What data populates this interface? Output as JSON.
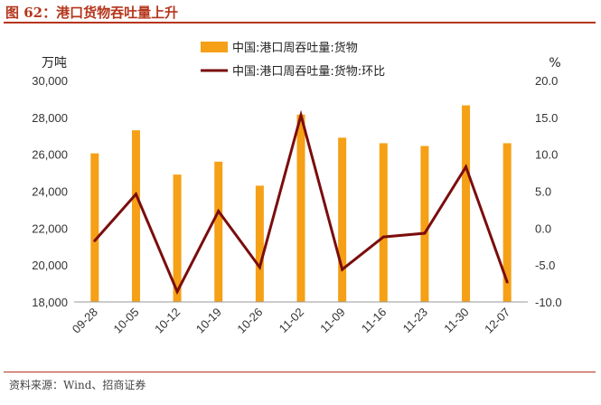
{
  "figure": {
    "title": "图 62：港口货物吞吐量上升",
    "source": "资料来源：Wind、招商证券"
  },
  "chart_data": {
    "type": "bar",
    "categories": [
      "09-28",
      "10-05",
      "10-12",
      "10-19",
      "10-26",
      "11-02",
      "11-09",
      "11-16",
      "11-23",
      "11-30",
      "12-07"
    ],
    "left_unit": "万吨",
    "right_unit": "%",
    "ylim": [
      18000,
      30000
    ],
    "y2lim": [
      -10,
      20
    ],
    "y_ticks": [
      "18,000",
      "20,000",
      "22,000",
      "24,000",
      "26,000",
      "28,000",
      "30,000"
    ],
    "y2_ticks": [
      "-10.0",
      "-5.0",
      "0.0",
      "5.0",
      "10.0",
      "15.0",
      "20.0"
    ],
    "grid": false,
    "legend_position": "top-center",
    "series": [
      {
        "name": "中国:港口周吞吐量:货物",
        "type": "bar",
        "axis": "left",
        "color": "#f5a016",
        "values": [
          26050,
          27300,
          24900,
          25600,
          24300,
          28150,
          26900,
          26600,
          26450,
          28650,
          26600
        ]
      },
      {
        "name": "中国:港口周吞吐量:货物:环比",
        "type": "line",
        "axis": "right",
        "color": "#7b0d0d",
        "values": [
          -1.7,
          4.6,
          -8.6,
          2.3,
          -5.3,
          15.3,
          -5.6,
          -1.2,
          -0.7,
          8.3,
          -7.3
        ]
      }
    ]
  }
}
